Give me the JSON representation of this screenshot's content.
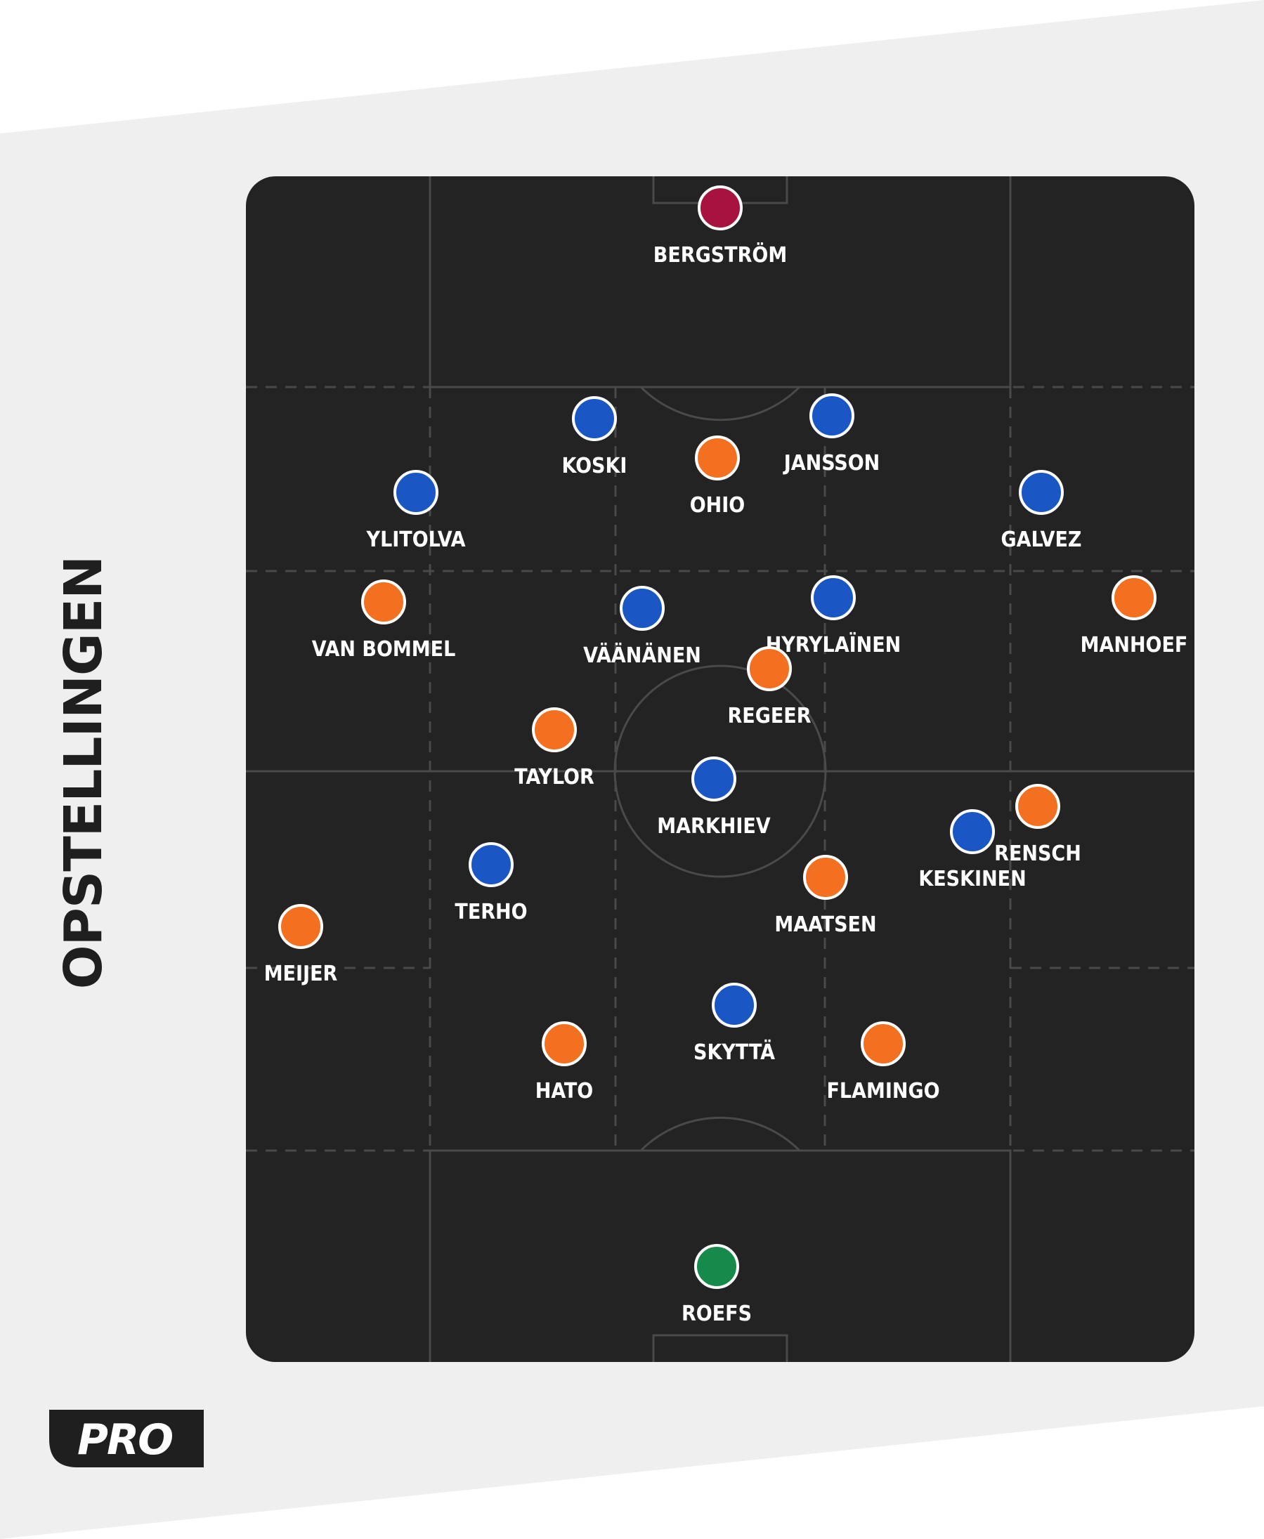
{
  "title": "OPSTELLINGEN",
  "logo_text": "PRO",
  "colors": {
    "background_band": "#efefef",
    "pitch": "#232323",
    "pitch_lines": "#4a4a4a",
    "orange_team": "#f37021",
    "blue_team": "#1a57c4",
    "keeper_top": "#a8123e",
    "keeper_bottom": "#168a4a",
    "label": "#ffffff"
  },
  "players": [
    {
      "name": "BERGSTRÖM",
      "team": "keeper_top"
    },
    {
      "name": "KOSKI",
      "team": "blue"
    },
    {
      "name": "JANSSON",
      "team": "blue"
    },
    {
      "name": "OHIO",
      "team": "orange"
    },
    {
      "name": "YLITOLVA",
      "team": "blue"
    },
    {
      "name": "GALVEZ",
      "team": "blue"
    },
    {
      "name": "VAN BOMMEL",
      "team": "orange"
    },
    {
      "name": "VÄÄNÄNEN",
      "team": "blue"
    },
    {
      "name": "HYRYLAÏNEN",
      "team": "blue"
    },
    {
      "name": "MANHOEF",
      "team": "orange"
    },
    {
      "name": "REGEER",
      "team": "orange"
    },
    {
      "name": "TAYLOR",
      "team": "orange"
    },
    {
      "name": "MARKHIEV",
      "team": "blue"
    },
    {
      "name": "RENSCH",
      "team": "orange"
    },
    {
      "name": "KESKINEN",
      "team": "blue"
    },
    {
      "name": "TERHO",
      "team": "blue"
    },
    {
      "name": "MAATSEN",
      "team": "orange"
    },
    {
      "name": "MEIJER",
      "team": "orange"
    },
    {
      "name": "SKYTTÄ",
      "team": "blue"
    },
    {
      "name": "HATO",
      "team": "orange"
    },
    {
      "name": "FLAMINGO",
      "team": "orange"
    },
    {
      "name": "ROEFS",
      "team": "keeper_bottom"
    }
  ]
}
